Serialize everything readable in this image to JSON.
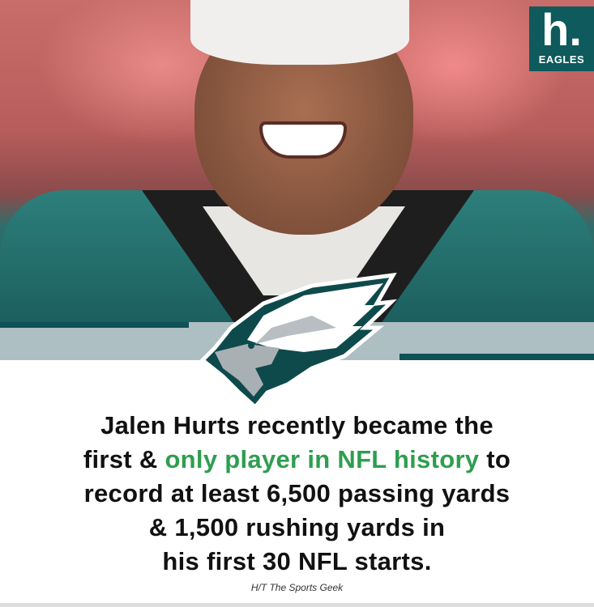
{
  "brand_logo": {
    "mark": "h.",
    "label": "EAGLES",
    "color": "#0e5a5c"
  },
  "team_logo": {
    "icon": "philadelphia-eagles-logo"
  },
  "headline": {
    "part1": "Jalen Hurts recently became the",
    "part2_pre": "first & ",
    "part2_highlight": "only player in NFL history",
    "part2_post": " to",
    "part3": "record at least 6,500 passing yards",
    "part4": "& 1,500 rushing yards in",
    "part5": "his first 30 NFL starts.",
    "highlight_color": "#2e9e4f"
  },
  "credit": "H/T The Sports Geek"
}
